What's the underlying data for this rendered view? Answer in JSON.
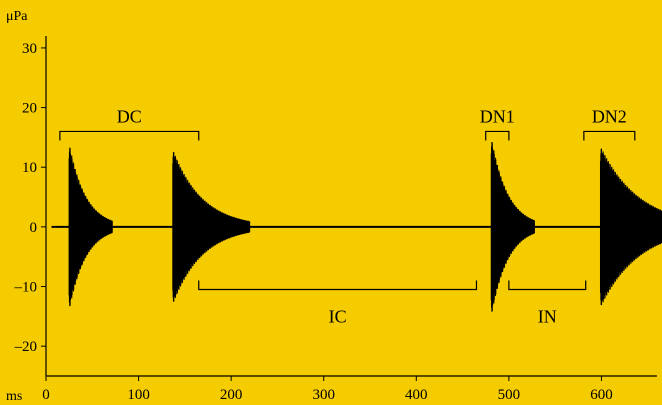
{
  "chart_data": {
    "type": "line",
    "title": "",
    "xlabel": "ms",
    "ylabel": "μPa",
    "xlim": [
      0,
      660
    ],
    "ylim": [
      -25,
      32
    ],
    "x_ticks": [
      0,
      100,
      200,
      300,
      400,
      500,
      600
    ],
    "y_ticks": [
      30,
      20,
      10,
      0,
      -10,
      -20
    ],
    "y_tick_labels": [
      "30",
      "20",
      "10",
      "0",
      "–10",
      "–20"
    ],
    "grid": false,
    "legend": "none",
    "colors": {
      "background": "#F5CC00",
      "trace": "#000000"
    },
    "bursts": [
      {
        "name": "burst-1",
        "start_ms": 25,
        "peak": 14,
        "trough": -14,
        "decay_ms": 18
      },
      {
        "name": "burst-2",
        "start_ms": 137,
        "peak": 13,
        "trough": -13,
        "decay_ms": 32
      },
      {
        "name": "burst-3",
        "start_ms": 481,
        "peak": 15,
        "trough": -15,
        "decay_ms": 18
      },
      {
        "name": "burst-4",
        "start_ms": 599,
        "peak": 13.5,
        "trough": -13.5,
        "decay_ms": 42
      }
    ],
    "annotations": [
      {
        "label": "DC",
        "x_start": 15,
        "x_end": 165,
        "y": 16,
        "side": "above"
      },
      {
        "label": "IC",
        "x_start": 165,
        "x_end": 465,
        "y": -10.5,
        "side": "below"
      },
      {
        "label": "DN1",
        "x_start": 475,
        "x_end": 500,
        "y": 16,
        "side": "above"
      },
      {
        "label": "IN",
        "x_start": 500,
        "x_end": 583,
        "y": -10.5,
        "side": "below"
      },
      {
        "label": "DN2",
        "x_start": 581,
        "x_end": 636,
        "y": 16,
        "side": "above"
      }
    ]
  }
}
